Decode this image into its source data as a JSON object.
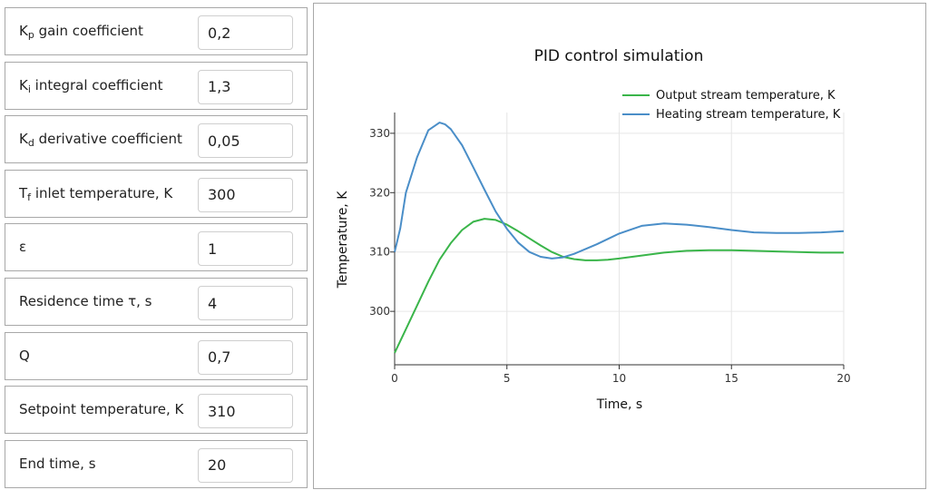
{
  "params": [
    {
      "id": "kp",
      "label_main": "K",
      "label_sub": "p",
      "label_rest": " gain coefficient",
      "value": "0,2"
    },
    {
      "id": "ki",
      "label_main": "K",
      "label_sub": "i",
      "label_rest": " integral coefficient",
      "value": "1,3"
    },
    {
      "id": "kd",
      "label_main": "K",
      "label_sub": "d",
      "label_rest": " derivative coefficient",
      "value": "0,05"
    },
    {
      "id": "tf",
      "label_main": "T",
      "label_sub": "f",
      "label_rest": " inlet temperature, K",
      "value": "300"
    },
    {
      "id": "epsilon",
      "label_main": "ε",
      "label_sub": "",
      "label_rest": "",
      "value": "1"
    },
    {
      "id": "residence-time",
      "label_main": "Residence time τ, s",
      "label_sub": "",
      "label_rest": "",
      "value": "4"
    },
    {
      "id": "q",
      "label_main": "Q",
      "label_sub": "",
      "label_rest": "",
      "value": "0,7"
    },
    {
      "id": "setpoint",
      "label_main": "Setpoint temperature, K",
      "label_sub": "",
      "label_rest": "",
      "value": "310"
    },
    {
      "id": "end-time",
      "label_main": "End time, s",
      "label_sub": "",
      "label_rest": "",
      "value": "20"
    }
  ],
  "chart_data": {
    "type": "line",
    "title": "PID control simulation",
    "xlabel": "Time, s",
    "ylabel": "Temperature, K",
    "xlim": [
      0,
      20
    ],
    "ylim": [
      291,
      333.5
    ],
    "xticks": [
      0,
      5,
      10,
      15,
      20
    ],
    "yticks": [
      300,
      310,
      320,
      330
    ],
    "grid": true,
    "legend_position": "top-right",
    "series": [
      {
        "name": "Output stream temperature, K",
        "color": "#3ab54a",
        "x": [
          0,
          0.5,
          1,
          1.5,
          2,
          2.5,
          3,
          3.5,
          4,
          4.5,
          5,
          5.5,
          6,
          6.5,
          7,
          7.5,
          8,
          8.5,
          9,
          9.5,
          10,
          11,
          12,
          13,
          14,
          15,
          16,
          17,
          18,
          19,
          20
        ],
        "y": [
          293,
          297,
          301,
          305,
          308.7,
          311.5,
          313.7,
          315.1,
          315.6,
          315.4,
          314.6,
          313.5,
          312.3,
          311.1,
          310,
          309.2,
          308.8,
          308.6,
          308.6,
          308.7,
          308.9,
          309.4,
          309.9,
          310.2,
          310.3,
          310.3,
          310.2,
          310.1,
          310,
          309.9,
          309.9
        ]
      },
      {
        "name": "Heating stream temperature, K",
        "color": "#4a8ec8",
        "x": [
          0,
          0.25,
          0.5,
          1,
          1.5,
          2,
          2.25,
          2.5,
          3,
          3.5,
          4,
          4.5,
          5,
          5.5,
          6,
          6.5,
          7,
          7.5,
          8,
          8.5,
          9,
          9.5,
          10,
          11,
          12,
          13,
          14,
          15,
          16,
          17,
          18,
          19,
          20
        ],
        "y": [
          310,
          314,
          320,
          326,
          330.5,
          331.8,
          331.5,
          330.7,
          328,
          324.3,
          320.5,
          316.8,
          313.9,
          311.6,
          310,
          309.2,
          308.9,
          309.1,
          309.7,
          310.5,
          311.3,
          312.2,
          313.1,
          314.4,
          314.8,
          314.6,
          314.2,
          313.7,
          313.3,
          313.2,
          313.2,
          313.3,
          313.5
        ]
      }
    ]
  }
}
